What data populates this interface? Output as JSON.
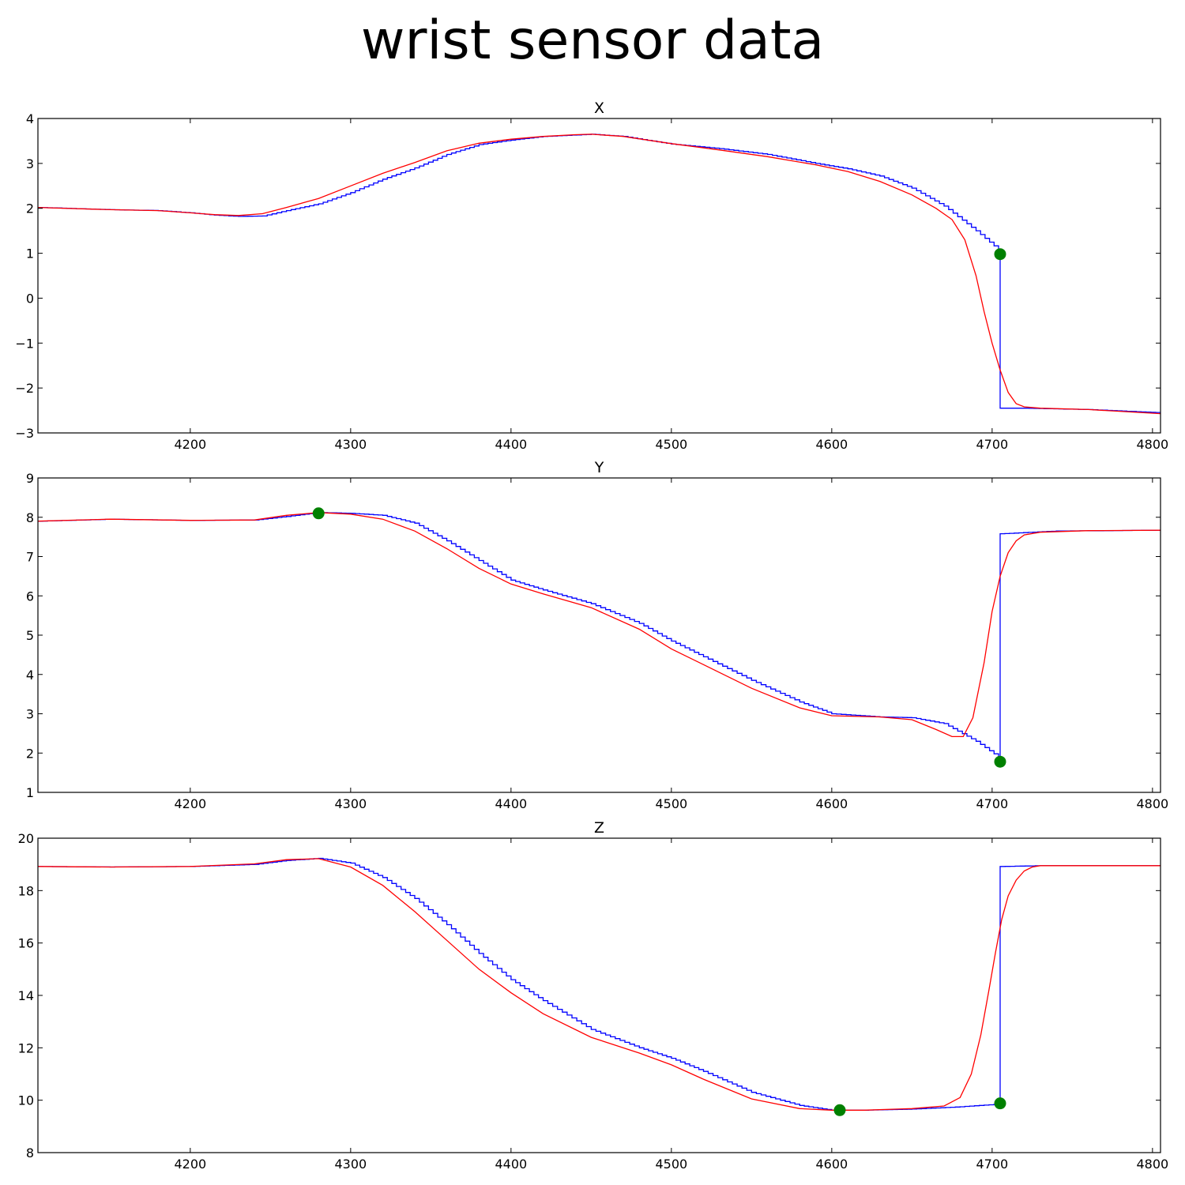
{
  "figure": {
    "title": "wrist sensor data"
  },
  "colors": {
    "raw": "#0000ff",
    "smoothed": "#ff0000",
    "marker": "#008000"
  },
  "chart_data": [
    {
      "type": "line",
      "title": "X",
      "xlim": [
        4105,
        4805
      ],
      "ylim": [
        -3,
        4
      ],
      "xticks": [
        4200,
        4300,
        4400,
        4500,
        4600,
        4700,
        4800
      ],
      "yticks": [
        -3,
        -2,
        -1,
        0,
        1,
        2,
        3,
        4
      ],
      "xticklabels": [
        "4200",
        "4300",
        "4400",
        "4500",
        "4600",
        "4700",
        "4800"
      ],
      "yticklabels": [
        "−3",
        "−2",
        "−1",
        "0",
        "1",
        "2",
        "3",
        "4"
      ],
      "series": [
        {
          "color": "blue",
          "step": true,
          "x": [
            4105,
            4150,
            4180,
            4200,
            4215,
            4230,
            4245,
            4260,
            4280,
            4300,
            4320,
            4340,
            4360,
            4380,
            4400,
            4420,
            4450,
            4470,
            4500,
            4530,
            4560,
            4590,
            4610,
            4630,
            4650,
            4670,
            4690,
            4704,
            4705,
            4705,
            4720,
            4760,
            4805
          ],
          "y": [
            2.02,
            1.97,
            1.95,
            1.9,
            1.85,
            1.82,
            1.83,
            1.95,
            2.1,
            2.35,
            2.65,
            2.9,
            3.2,
            3.42,
            3.52,
            3.6,
            3.65,
            3.6,
            3.43,
            3.33,
            3.2,
            3.0,
            2.88,
            2.72,
            2.45,
            2.05,
            1.5,
            1.08,
            1.0,
            -2.45,
            -2.45,
            -2.48,
            -2.55
          ]
        },
        {
          "color": "red",
          "step": false,
          "x": [
            4105,
            4150,
            4180,
            4200,
            4215,
            4230,
            4245,
            4260,
            4280,
            4300,
            4320,
            4340,
            4360,
            4380,
            4400,
            4420,
            4440,
            4450,
            4470,
            4500,
            4530,
            4560,
            4590,
            4610,
            4630,
            4650,
            4665,
            4675,
            4683,
            4690,
            4695,
            4700,
            4705,
            4710,
            4715,
            4720,
            4730,
            4760,
            4805
          ],
          "y": [
            2.02,
            1.97,
            1.95,
            1.9,
            1.86,
            1.84,
            1.88,
            2.02,
            2.22,
            2.5,
            2.78,
            3.02,
            3.28,
            3.45,
            3.54,
            3.6,
            3.64,
            3.65,
            3.6,
            3.44,
            3.3,
            3.15,
            2.97,
            2.82,
            2.6,
            2.3,
            2.0,
            1.75,
            1.3,
            0.5,
            -0.3,
            -1.0,
            -1.6,
            -2.1,
            -2.35,
            -2.42,
            -2.45,
            -2.48,
            -2.57
          ]
        }
      ],
      "markers": [
        {
          "x": 4705,
          "y": 0.98
        }
      ]
    },
    {
      "type": "line",
      "title": "Y",
      "xlim": [
        4105,
        4805
      ],
      "ylim": [
        1,
        9
      ],
      "xticks": [
        4200,
        4300,
        4400,
        4500,
        4600,
        4700,
        4800
      ],
      "yticks": [
        1,
        2,
        3,
        4,
        5,
        6,
        7,
        8,
        9
      ],
      "xticklabels": [
        "4200",
        "4300",
        "4400",
        "4500",
        "4600",
        "4700",
        "4800"
      ],
      "yticklabels": [
        "1",
        "2",
        "3",
        "4",
        "5",
        "6",
        "7",
        "8",
        "9"
      ],
      "series": [
        {
          "color": "blue",
          "step": true,
          "x": [
            4105,
            4150,
            4200,
            4240,
            4260,
            4280,
            4300,
            4320,
            4340,
            4360,
            4380,
            4400,
            4420,
            4450,
            4480,
            4500,
            4520,
            4550,
            4580,
            4600,
            4630,
            4650,
            4670,
            4690,
            4704,
            4705,
            4705,
            4740,
            4805
          ],
          "y": [
            7.9,
            7.95,
            7.92,
            7.93,
            8.02,
            8.12,
            8.1,
            8.05,
            7.85,
            7.4,
            6.9,
            6.4,
            6.15,
            5.8,
            5.3,
            4.85,
            4.45,
            3.85,
            3.3,
            3.0,
            2.92,
            2.9,
            2.75,
            2.3,
            1.9,
            1.8,
            7.58,
            7.65,
            7.67
          ]
        },
        {
          "color": "red",
          "step": false,
          "x": [
            4105,
            4150,
            4200,
            4240,
            4260,
            4280,
            4300,
            4320,
            4340,
            4360,
            4380,
            4400,
            4420,
            4450,
            4480,
            4500,
            4520,
            4550,
            4580,
            4600,
            4630,
            4650,
            4665,
            4675,
            4682,
            4688,
            4695,
            4700,
            4705,
            4710,
            4715,
            4720,
            4730,
            4760,
            4805
          ],
          "y": [
            7.9,
            7.95,
            7.92,
            7.93,
            8.05,
            8.12,
            8.08,
            7.95,
            7.65,
            7.2,
            6.7,
            6.3,
            6.05,
            5.7,
            5.15,
            4.65,
            4.25,
            3.65,
            3.15,
            2.95,
            2.92,
            2.85,
            2.6,
            2.42,
            2.42,
            2.9,
            4.3,
            5.6,
            6.5,
            7.1,
            7.4,
            7.55,
            7.62,
            7.66,
            7.67
          ]
        }
      ],
      "markers": [
        {
          "x": 4280,
          "y": 8.1
        },
        {
          "x": 4705,
          "y": 1.78
        }
      ]
    },
    {
      "type": "line",
      "title": "Z",
      "xlim": [
        4105,
        4805
      ],
      "ylim": [
        8,
        20
      ],
      "xticks": [
        4200,
        4300,
        4400,
        4500,
        4600,
        4700,
        4800
      ],
      "yticks": [
        8,
        10,
        12,
        14,
        16,
        18,
        20
      ],
      "xticklabels": [
        "4200",
        "4300",
        "4400",
        "4500",
        "4600",
        "4700",
        "4800"
      ],
      "yticklabels": [
        "8",
        "10",
        "12",
        "14",
        "16",
        "18",
        "20"
      ],
      "series": [
        {
          "color": "blue",
          "step": true,
          "x": [
            4105,
            4150,
            4200,
            4240,
            4260,
            4280,
            4300,
            4320,
            4340,
            4360,
            4380,
            4400,
            4420,
            4450,
            4480,
            4500,
            4520,
            4550,
            4580,
            4600,
            4620,
            4650,
            4680,
            4704,
            4705,
            4705,
            4730,
            4805
          ],
          "y": [
            18.92,
            18.9,
            18.92,
            19.0,
            19.15,
            19.23,
            19.05,
            18.5,
            17.7,
            16.7,
            15.6,
            14.6,
            13.8,
            12.7,
            12.0,
            11.6,
            11.1,
            10.3,
            9.8,
            9.62,
            9.62,
            9.66,
            9.75,
            9.85,
            9.88,
            18.92,
            18.95,
            18.95
          ]
        },
        {
          "color": "red",
          "step": false,
          "x": [
            4105,
            4150,
            4200,
            4240,
            4260,
            4280,
            4300,
            4320,
            4340,
            4360,
            4380,
            4400,
            4420,
            4450,
            4480,
            4500,
            4520,
            4550,
            4580,
            4600,
            4620,
            4650,
            4670,
            4680,
            4687,
            4693,
            4698,
            4702,
            4706,
            4710,
            4715,
            4720,
            4725,
            4730,
            4760,
            4805
          ],
          "y": [
            18.92,
            18.9,
            18.92,
            19.02,
            19.18,
            19.22,
            18.9,
            18.2,
            17.2,
            16.1,
            15.0,
            14.1,
            13.3,
            12.4,
            11.8,
            11.35,
            10.8,
            10.05,
            9.68,
            9.62,
            9.62,
            9.68,
            9.78,
            10.1,
            11.0,
            12.5,
            14.2,
            15.6,
            16.9,
            17.8,
            18.4,
            18.75,
            18.9,
            18.95,
            18.95,
            18.95
          ]
        }
      ],
      "markers": [
        {
          "x": 4605,
          "y": 9.62
        },
        {
          "x": 4705,
          "y": 9.88
        }
      ]
    }
  ]
}
